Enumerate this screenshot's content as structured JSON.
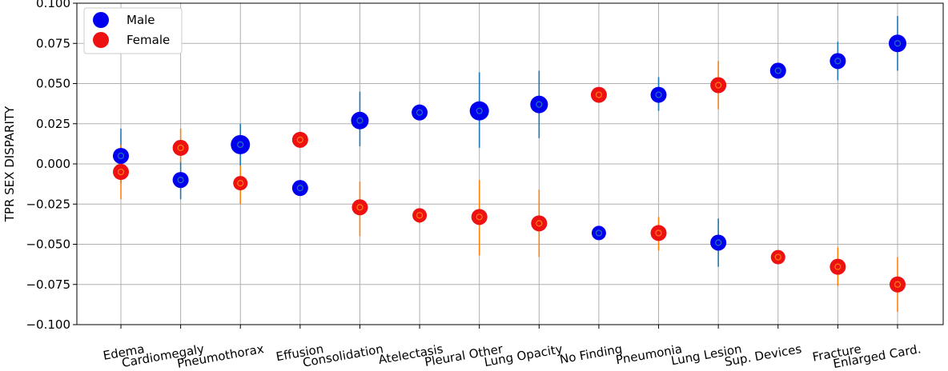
{
  "chart_data": {
    "type": "scatter",
    "ylabel": "TPR SEX DISPARITY",
    "xlabel": "",
    "ylim": [
      -0.1,
      0.1
    ],
    "yticks": [
      0.1,
      0.075,
      0.05,
      0.025,
      0.0,
      -0.025,
      -0.05,
      -0.075,
      -0.1
    ],
    "ytick_labels": [
      "0.100",
      "0.075",
      "0.050",
      "0.025",
      "0.000",
      "−0.025",
      "−0.050",
      "−0.075",
      "−0.100"
    ],
    "grid": true,
    "legend_position": "top-left",
    "categories": [
      "Edema",
      "Cardiomegaly",
      "Pneumothorax",
      "Effusion",
      "Consolidation",
      "Atelectasis",
      "Pleural Other",
      "Lung Opacity",
      "No Finding",
      "Pneumonia",
      "Lung Lesion",
      "Sup. Devices",
      "Fracture",
      "Enlarged Card."
    ],
    "series": [
      {
        "name": "Male",
        "color": "#0000ee",
        "errbar_color": "#1f77b4",
        "values": [
          0.005,
          -0.01,
          0.012,
          -0.015,
          0.027,
          0.032,
          0.033,
          0.037,
          -0.043,
          0.043,
          -0.049,
          0.058,
          0.064,
          0.075
        ],
        "err_low": [
          -0.012,
          -0.022,
          -0.001,
          -0.02,
          0.011,
          0.028,
          0.01,
          0.016,
          -0.047,
          0.033,
          -0.064,
          0.058,
          0.052,
          0.058
        ],
        "err_high": [
          0.022,
          0.002,
          0.025,
          -0.01,
          0.045,
          0.037,
          0.057,
          0.058,
          -0.039,
          0.054,
          -0.034,
          0.058,
          0.076,
          0.092
        ],
        "sizes": [
          10,
          10,
          12,
          10,
          11,
          10,
          12,
          11,
          9,
          10,
          10,
          10,
          10,
          11
        ]
      },
      {
        "name": "Female",
        "color": "#ee1111",
        "errbar_color": "#ff7f0e",
        "values": [
          -0.005,
          0.01,
          -0.012,
          0.015,
          -0.027,
          -0.032,
          -0.033,
          -0.037,
          0.043,
          -0.043,
          0.049,
          -0.058,
          -0.064,
          -0.075
        ],
        "err_low": [
          -0.022,
          0.001,
          -0.025,
          0.01,
          -0.045,
          -0.037,
          -0.057,
          -0.058,
          0.039,
          -0.054,
          0.034,
          -0.058,
          -0.076,
          -0.092
        ],
        "err_high": [
          0.012,
          0.022,
          -0.001,
          0.02,
          -0.011,
          -0.028,
          -0.01,
          -0.016,
          0.047,
          -0.033,
          0.064,
          -0.058,
          -0.052,
          -0.058
        ],
        "sizes": [
          10,
          10,
          9,
          10,
          10,
          9,
          10,
          10,
          10,
          10,
          10,
          9,
          10,
          10
        ]
      }
    ]
  }
}
